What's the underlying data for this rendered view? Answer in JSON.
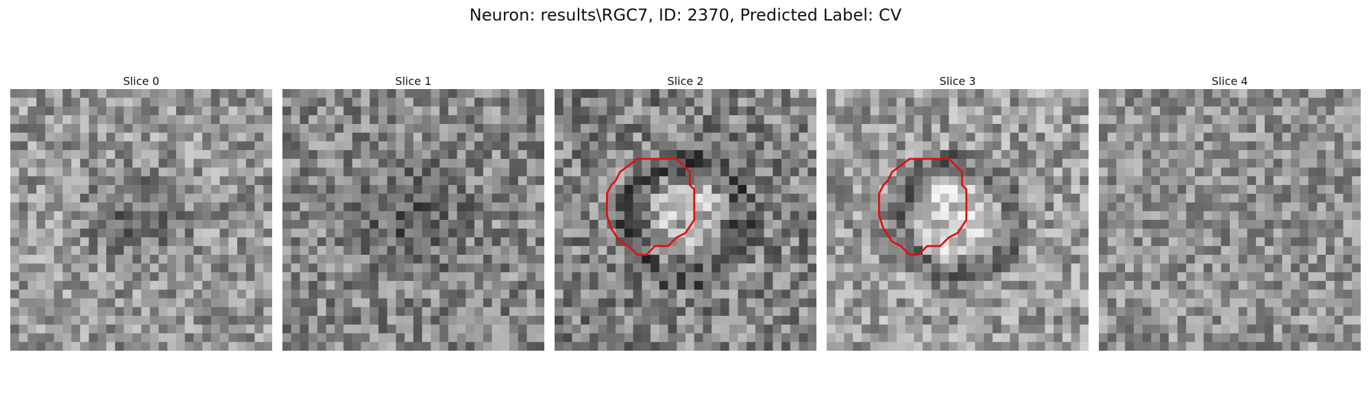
{
  "figure": {
    "title": "Neuron: results\\RGC7, ID: 2370, Predicted Label: CV"
  },
  "slices": [
    {
      "title": "Slice 0",
      "has_contour": false,
      "seed": 11,
      "dark_center": true,
      "mean": 150,
      "contrast": 55
    },
    {
      "title": "Slice 1",
      "has_contour": false,
      "seed": 23,
      "dark_center": true,
      "mean": 135,
      "contrast": 55
    },
    {
      "title": "Slice 2",
      "has_contour": true,
      "seed": 37,
      "dark_center": false,
      "mean": 130,
      "contrast": 60
    },
    {
      "title": "Slice 3",
      "has_contour": true,
      "seed": 51,
      "dark_center": false,
      "mean": 155,
      "contrast": 55
    },
    {
      "title": "Slice 4",
      "has_contour": false,
      "seed": 67,
      "dark_center": false,
      "mean": 145,
      "contrast": 50
    }
  ],
  "colors": {
    "contour": "#e01010",
    "background": "#ffffff"
  }
}
